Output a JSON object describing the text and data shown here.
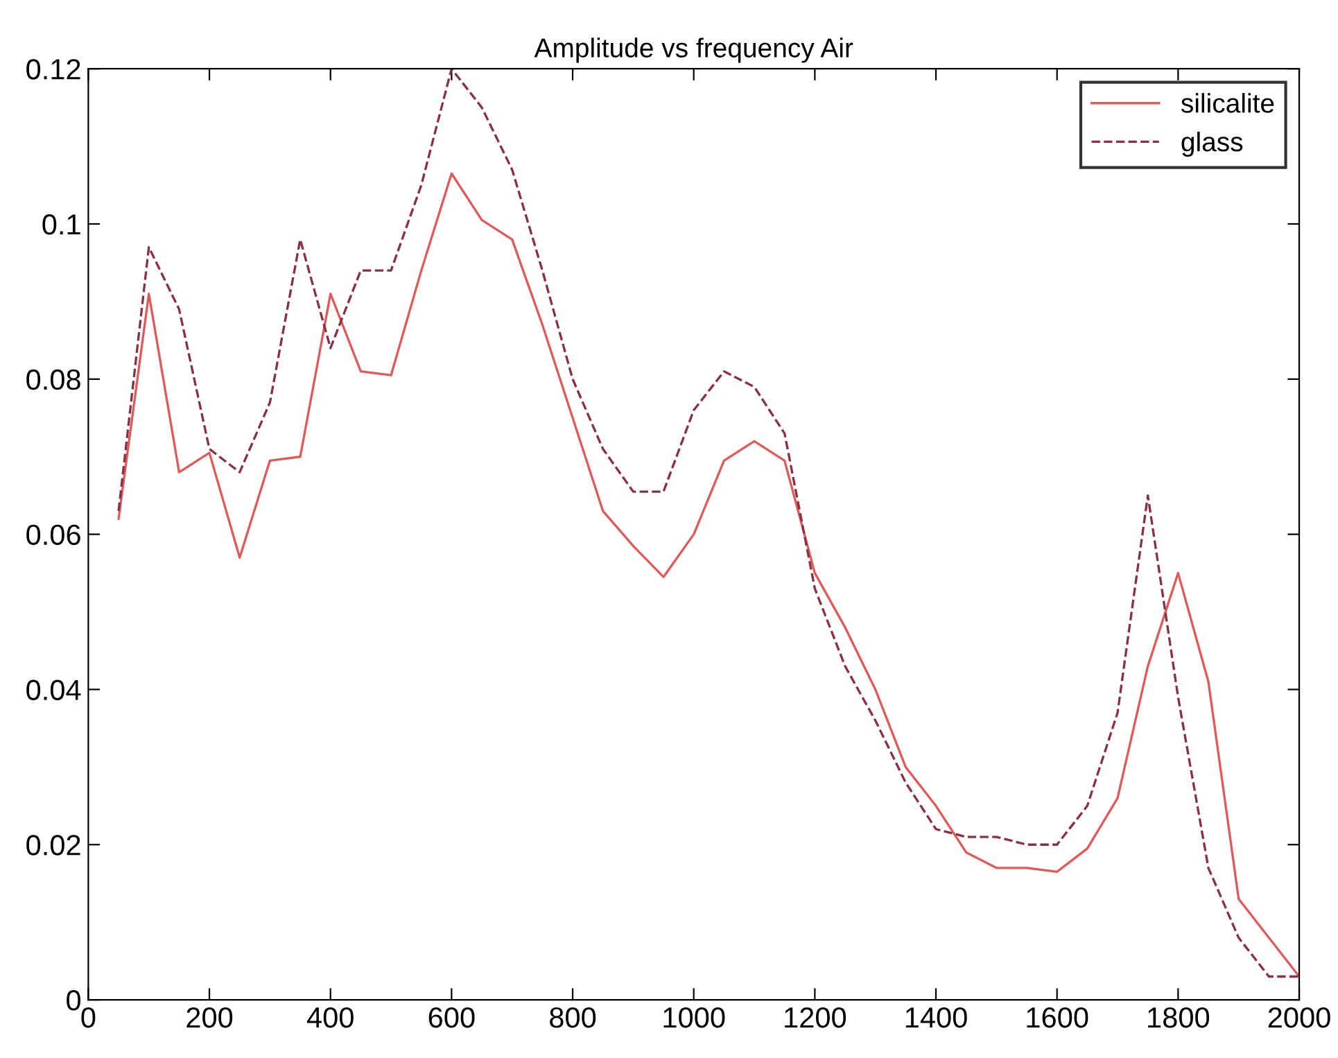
{
  "chart_data": {
    "type": "line",
    "title": "Amplitude vs frequency Air",
    "x": [
      50,
      100,
      150,
      200,
      250,
      300,
      350,
      400,
      450,
      500,
      550,
      600,
      650,
      700,
      750,
      800,
      850,
      900,
      950,
      1000,
      1050,
      1100,
      1150,
      1200,
      1250,
      1300,
      1350,
      1400,
      1450,
      1500,
      1550,
      1600,
      1650,
      1700,
      1750,
      1800,
      1850,
      1900,
      1950,
      2000
    ],
    "series": [
      {
        "name": "silicalite",
        "color": "#e05a5a",
        "line_style": "solid",
        "values": [
          0.062,
          0.091,
          0.068,
          0.0705,
          0.057,
          0.0695,
          0.07,
          0.091,
          0.081,
          0.0805,
          0.094,
          0.1065,
          0.1005,
          0.098,
          0.087,
          0.075,
          0.063,
          0.0585,
          0.0545,
          0.06,
          0.0695,
          0.072,
          0.0695,
          0.055,
          0.048,
          0.04,
          0.03,
          0.025,
          0.019,
          0.017,
          0.017,
          0.0165,
          0.0195,
          0.026,
          0.043,
          0.055,
          0.041,
          0.013,
          0.008,
          0.003
        ]
      },
      {
        "name": "glass",
        "color": "#8a3045",
        "line_style": "dashed",
        "values": [
          0.063,
          0.097,
          0.089,
          0.071,
          0.068,
          0.077,
          0.098,
          0.084,
          0.094,
          0.094,
          0.105,
          0.12,
          0.115,
          0.107,
          0.094,
          0.08,
          0.071,
          0.0655,
          0.0655,
          0.076,
          0.081,
          0.079,
          0.073,
          0.053,
          0.043,
          0.036,
          0.028,
          0.022,
          0.021,
          0.021,
          0.02,
          0.02,
          0.025,
          0.037,
          0.065,
          0.039,
          0.017,
          0.008,
          0.003,
          0.003
        ]
      }
    ],
    "xlim": [
      0,
      2000
    ],
    "xticks": [
      0,
      200,
      400,
      600,
      800,
      1000,
      1200,
      1400,
      1600,
      1800,
      2000
    ],
    "ylim": [
      0,
      0.12
    ],
    "yticks": [
      0,
      0.02,
      0.04,
      0.06,
      0.08,
      {
        "value": 0.1,
        "label": "0.1"
      },
      0.12
    ],
    "grid": false,
    "legend": "top right",
    "marker": "none"
  }
}
